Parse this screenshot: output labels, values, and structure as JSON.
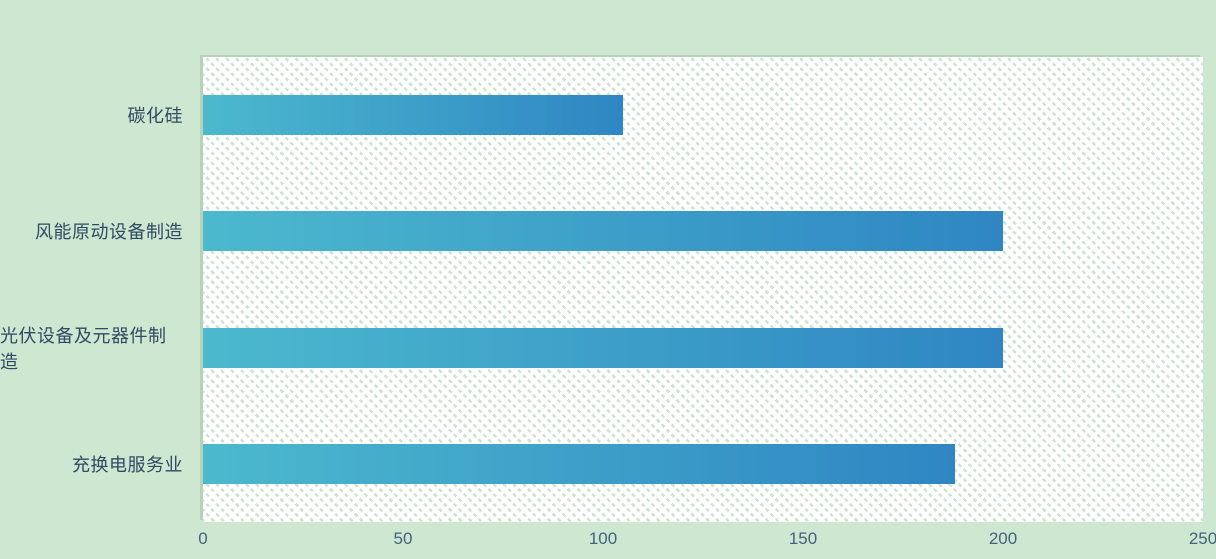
{
  "page": {
    "background": "#cde7d0",
    "plot_background": "white with light-green diagonal dotted hatch"
  },
  "chart_data": {
    "type": "bar",
    "orientation": "horizontal",
    "title": "",
    "xlabel": "",
    "ylabel": "",
    "categories": [
      "碳化硅",
      "风能原动设备制造",
      "光伏设备及元器件制造",
      "充换电服务业"
    ],
    "values": [
      105,
      200,
      200,
      188
    ],
    "xlim": [
      0,
      250
    ],
    "x_ticks": [
      "0",
      "50",
      "100",
      "150",
      "200",
      "250"
    ],
    "grid": false,
    "legend": "none",
    "bar_gradient_start": "#4cb9ce",
    "bar_gradient_end": "#2f86c3",
    "category_label_color": "#2f4a63",
    "tick_label_color": "#44627f"
  }
}
